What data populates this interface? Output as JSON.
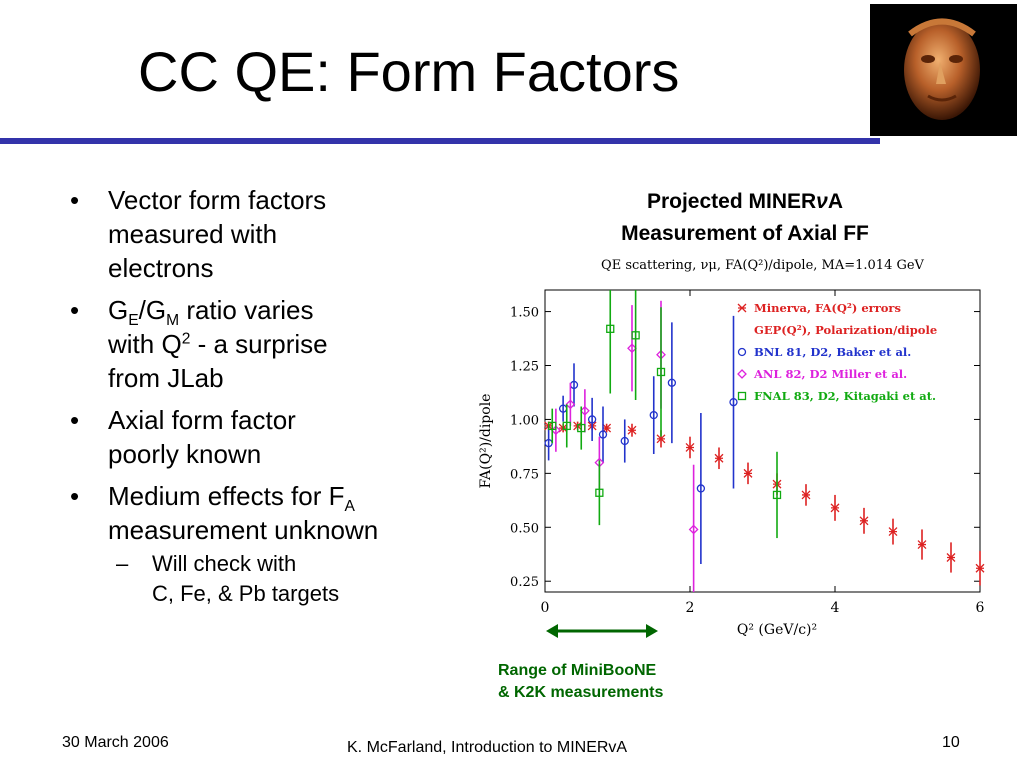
{
  "slide": {
    "title": "CC QE: Form Factors",
    "bullets": [
      {
        "lines": [
          "Vector form factors",
          "measured with",
          "electrons"
        ]
      },
      {
        "line1_pre": "G",
        "ge_sub": "E",
        "slash": "/G",
        "gm_sub": "M",
        "line1_post": " ratio varies",
        "line2_pre": "with Q",
        "q_sup": "2",
        "line2_post": " - a surprise",
        "line3": "from JLab"
      },
      {
        "lines": [
          "Axial form factor",
          "poorly known"
        ]
      },
      {
        "line1_pre": "Medium effects for F",
        "fa_sub": "A",
        "line2": "measurement unknown"
      }
    ],
    "sub_bullet": {
      "line1": "Will check with",
      "line2": "C, Fe, & Pb targets"
    },
    "plot_heading": {
      "line1_pre": "Projected MINER",
      "nu": "ν",
      "line1_post": "A",
      "line2": "Measurement of Axial FF"
    },
    "range_note": {
      "line1": "Range of MiniBooNE",
      "line2": "& K2K measurements"
    },
    "footer": {
      "date": "30 March 2006",
      "author": "K. McFarland, Introduction to MINERvA",
      "page": "10"
    },
    "colors": {
      "rule": "#3333aa",
      "range": "#006600"
    },
    "portrait_icon": "sculpted-head-image"
  },
  "chart_data": {
    "type": "scatter",
    "title": "QE scattering, νμ, FA(Q²)/dipole, MA=1.014 GeV",
    "xlabel": "Q² (GeV/c)²",
    "ylabel": "FA(Q²)/dipole",
    "xlim": [
      0,
      6
    ],
    "ylim": [
      0.2,
      1.6
    ],
    "xticks": [
      "0",
      "2",
      "4",
      "6"
    ],
    "yticks": [
      "0.25",
      "0.50",
      "0.75",
      "1.00",
      "1.25",
      "1.50"
    ],
    "legend_position": "top-right",
    "series": [
      {
        "name": "Minerva, FA(Q²) errors",
        "color": "#dd2222",
        "marker": "star",
        "x": [
          0.05,
          0.25,
          0.45,
          0.65,
          0.85,
          1.2,
          1.6,
          2.0,
          2.4,
          2.8,
          3.2,
          3.6,
          4.0,
          4.4,
          4.8,
          5.2,
          5.6,
          6.0
        ],
        "y": [
          0.97,
          0.96,
          0.97,
          0.97,
          0.96,
          0.95,
          0.91,
          0.87,
          0.82,
          0.75,
          0.7,
          0.65,
          0.59,
          0.53,
          0.48,
          0.42,
          0.36,
          0.31
        ],
        "err": [
          0.02,
          0.02,
          0.02,
          0.02,
          0.02,
          0.03,
          0.04,
          0.05,
          0.05,
          0.05,
          0.05,
          0.05,
          0.06,
          0.06,
          0.06,
          0.07,
          0.07,
          0.08
        ]
      },
      {
        "name": "GEP(Q²), Polarization/dipole",
        "color": "#dd2222",
        "marker": "none",
        "x": [],
        "y": [],
        "err": []
      },
      {
        "name": "BNL 81, D2, Baker et al.",
        "color": "#2233cc",
        "marker": "circle",
        "x": [
          0.05,
          0.25,
          0.4,
          0.65,
          0.8,
          1.1,
          1.5,
          1.75,
          2.15,
          2.6
        ],
        "y": [
          0.89,
          1.05,
          1.16,
          1.0,
          0.93,
          0.9,
          1.02,
          1.17,
          0.68,
          1.08
        ],
        "err": [
          0.08,
          0.06,
          0.1,
          0.1,
          0.13,
          0.1,
          0.18,
          0.28,
          0.35,
          0.4
        ]
      },
      {
        "name": "ANL 82, D2 Miller et al.",
        "color": "#dd22dd",
        "marker": "diamond",
        "x": [
          0.15,
          0.35,
          0.55,
          0.75,
          1.2,
          1.6,
          2.05
        ],
        "y": [
          0.95,
          1.07,
          1.04,
          0.8,
          1.33,
          1.3,
          0.49
        ],
        "err": [
          0.1,
          0.1,
          0.1,
          0.12,
          0.2,
          0.25,
          0.3
        ]
      },
      {
        "name": "FNAL 83, D2, Kitagaki et at.",
        "color": "#11aa11",
        "marker": "square",
        "x": [
          0.1,
          0.3,
          0.5,
          0.75,
          0.9,
          1.25,
          1.6,
          3.2
        ],
        "y": [
          0.97,
          0.97,
          0.96,
          0.66,
          1.42,
          1.39,
          1.22,
          0.65
        ],
        "err": [
          0.08,
          0.1,
          0.1,
          0.15,
          0.3,
          0.3,
          0.3,
          0.2
        ]
      }
    ]
  }
}
